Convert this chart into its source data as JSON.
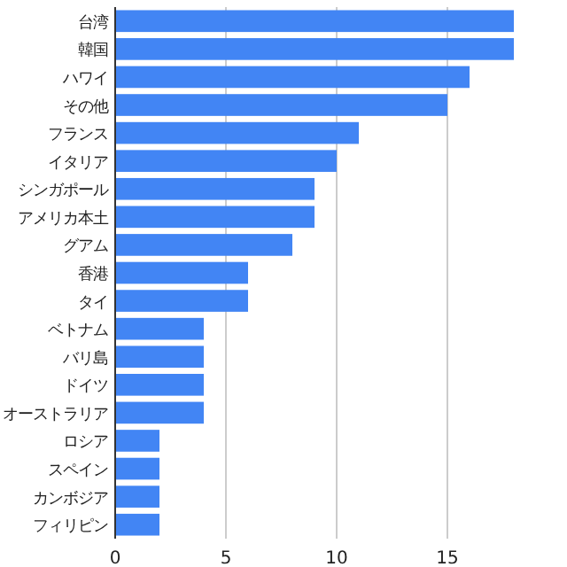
{
  "chart_data": {
    "type": "bar",
    "orientation": "horizontal",
    "categories": [
      "台湾",
      "韓国",
      "ハワイ",
      "その他",
      "フランス",
      "イタリア",
      "シンガポール",
      "アメリカ本土",
      "グアム",
      "香港",
      "タイ",
      "ベトナム",
      "バリ島",
      "ドイツ",
      "オーストラリア",
      "ロシア",
      "スペイン",
      "カンボジア",
      "フィリピン"
    ],
    "values": [
      18,
      18,
      16,
      15,
      11,
      10,
      9,
      9,
      8,
      6,
      6,
      4,
      4,
      4,
      4,
      2,
      2,
      2,
      2
    ],
    "color": "#4285f4",
    "xlim": [
      0,
      18
    ],
    "xticks": [
      0,
      5,
      10,
      15
    ],
    "grid": "x"
  }
}
